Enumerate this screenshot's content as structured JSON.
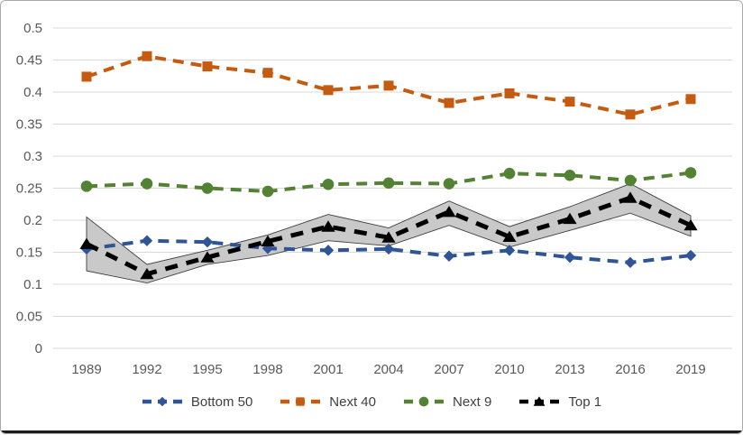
{
  "chart_data": {
    "type": "line",
    "title": "",
    "categories": [
      "1989",
      "1992",
      "1995",
      "1998",
      "2001",
      "2004",
      "2007",
      "2010",
      "2013",
      "2016",
      "2019"
    ],
    "xlabel": "",
    "ylabel": "",
    "ylim": [
      0,
      0.5
    ],
    "y_tick_step": 0.05,
    "y_tick_labels": [
      "0",
      "0.05",
      "0.1",
      "0.15",
      "0.2",
      "0.25",
      "0.3",
      "0.35",
      "0.4",
      "0.45",
      "0.5"
    ],
    "grid": true,
    "legend_position": "bottom",
    "series": [
      {
        "name": "Bottom 50",
        "color": "#2F5597",
        "marker": "diamond",
        "line_style": "dashed",
        "values": [
          0.155,
          0.168,
          0.166,
          0.156,
          0.153,
          0.155,
          0.144,
          0.153,
          0.142,
          0.134,
          0.145
        ]
      },
      {
        "name": "Next 40",
        "color": "#C55A11",
        "marker": "square",
        "line_style": "dashed",
        "values": [
          0.424,
          0.456,
          0.44,
          0.43,
          0.403,
          0.41,
          0.383,
          0.398,
          0.385,
          0.365,
          0.389
        ]
      },
      {
        "name": "Next 9",
        "color": "#548235",
        "marker": "circle",
        "line_style": "dashed",
        "values": [
          0.253,
          0.257,
          0.25,
          0.245,
          0.256,
          0.258,
          0.257,
          0.273,
          0.27,
          0.262,
          0.274
        ]
      },
      {
        "name": "Top 1",
        "color": "#000000",
        "marker": "triangle",
        "line_style": "dashed",
        "values": [
          0.163,
          0.116,
          0.142,
          0.167,
          0.19,
          0.173,
          0.213,
          0.174,
          0.202,
          0.235,
          0.192
        ],
        "band": {
          "upper": [
            0.205,
            0.131,
            0.153,
            0.177,
            0.209,
            0.188,
            0.23,
            0.19,
            0.221,
            0.257,
            0.207
          ],
          "lower": [
            0.121,
            0.102,
            0.131,
            0.145,
            0.168,
            0.16,
            0.192,
            0.158,
            0.184,
            0.211,
            0.175
          ],
          "fill": "#C9C9C9",
          "edge": "#3F3F3F"
        }
      }
    ],
    "colors": {
      "gridline": "#D9D9D9",
      "tick_label": "#595959",
      "legend_label": "#404040",
      "frame_border": "#ABABAB",
      "background": "#FFFFFF"
    }
  }
}
